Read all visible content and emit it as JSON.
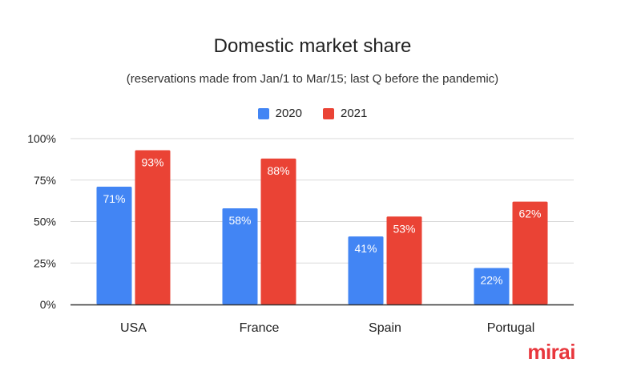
{
  "chart_data": {
    "type": "bar",
    "title": "Domestic market share",
    "subtitle": "(reservations made from Jan/1 to Mar/15; last Q before the pandemic)",
    "categories": [
      "USA",
      "France",
      "Spain",
      "Portugal"
    ],
    "series": [
      {
        "name": "2020",
        "values": [
          71,
          58,
          41,
          22
        ],
        "labels": [
          "71%",
          "58%",
          "41%",
          "22%"
        ],
        "color": "#4285f4"
      },
      {
        "name": "2021",
        "values": [
          93,
          88,
          53,
          62
        ],
        "labels": [
          "93%",
          "88%",
          "53%",
          "62%"
        ],
        "color": "#ea4335"
      }
    ],
    "ylim": [
      0,
      100
    ],
    "yticks": [
      0,
      25,
      50,
      75,
      100
    ],
    "ytick_labels": [
      "0%",
      "25%",
      "50%",
      "75%",
      "100%"
    ],
    "grid": true,
    "legend_position": "top-center",
    "xlabel": "",
    "ylabel": ""
  },
  "logo": {
    "text": "mirai",
    "color": "#e8373d"
  }
}
